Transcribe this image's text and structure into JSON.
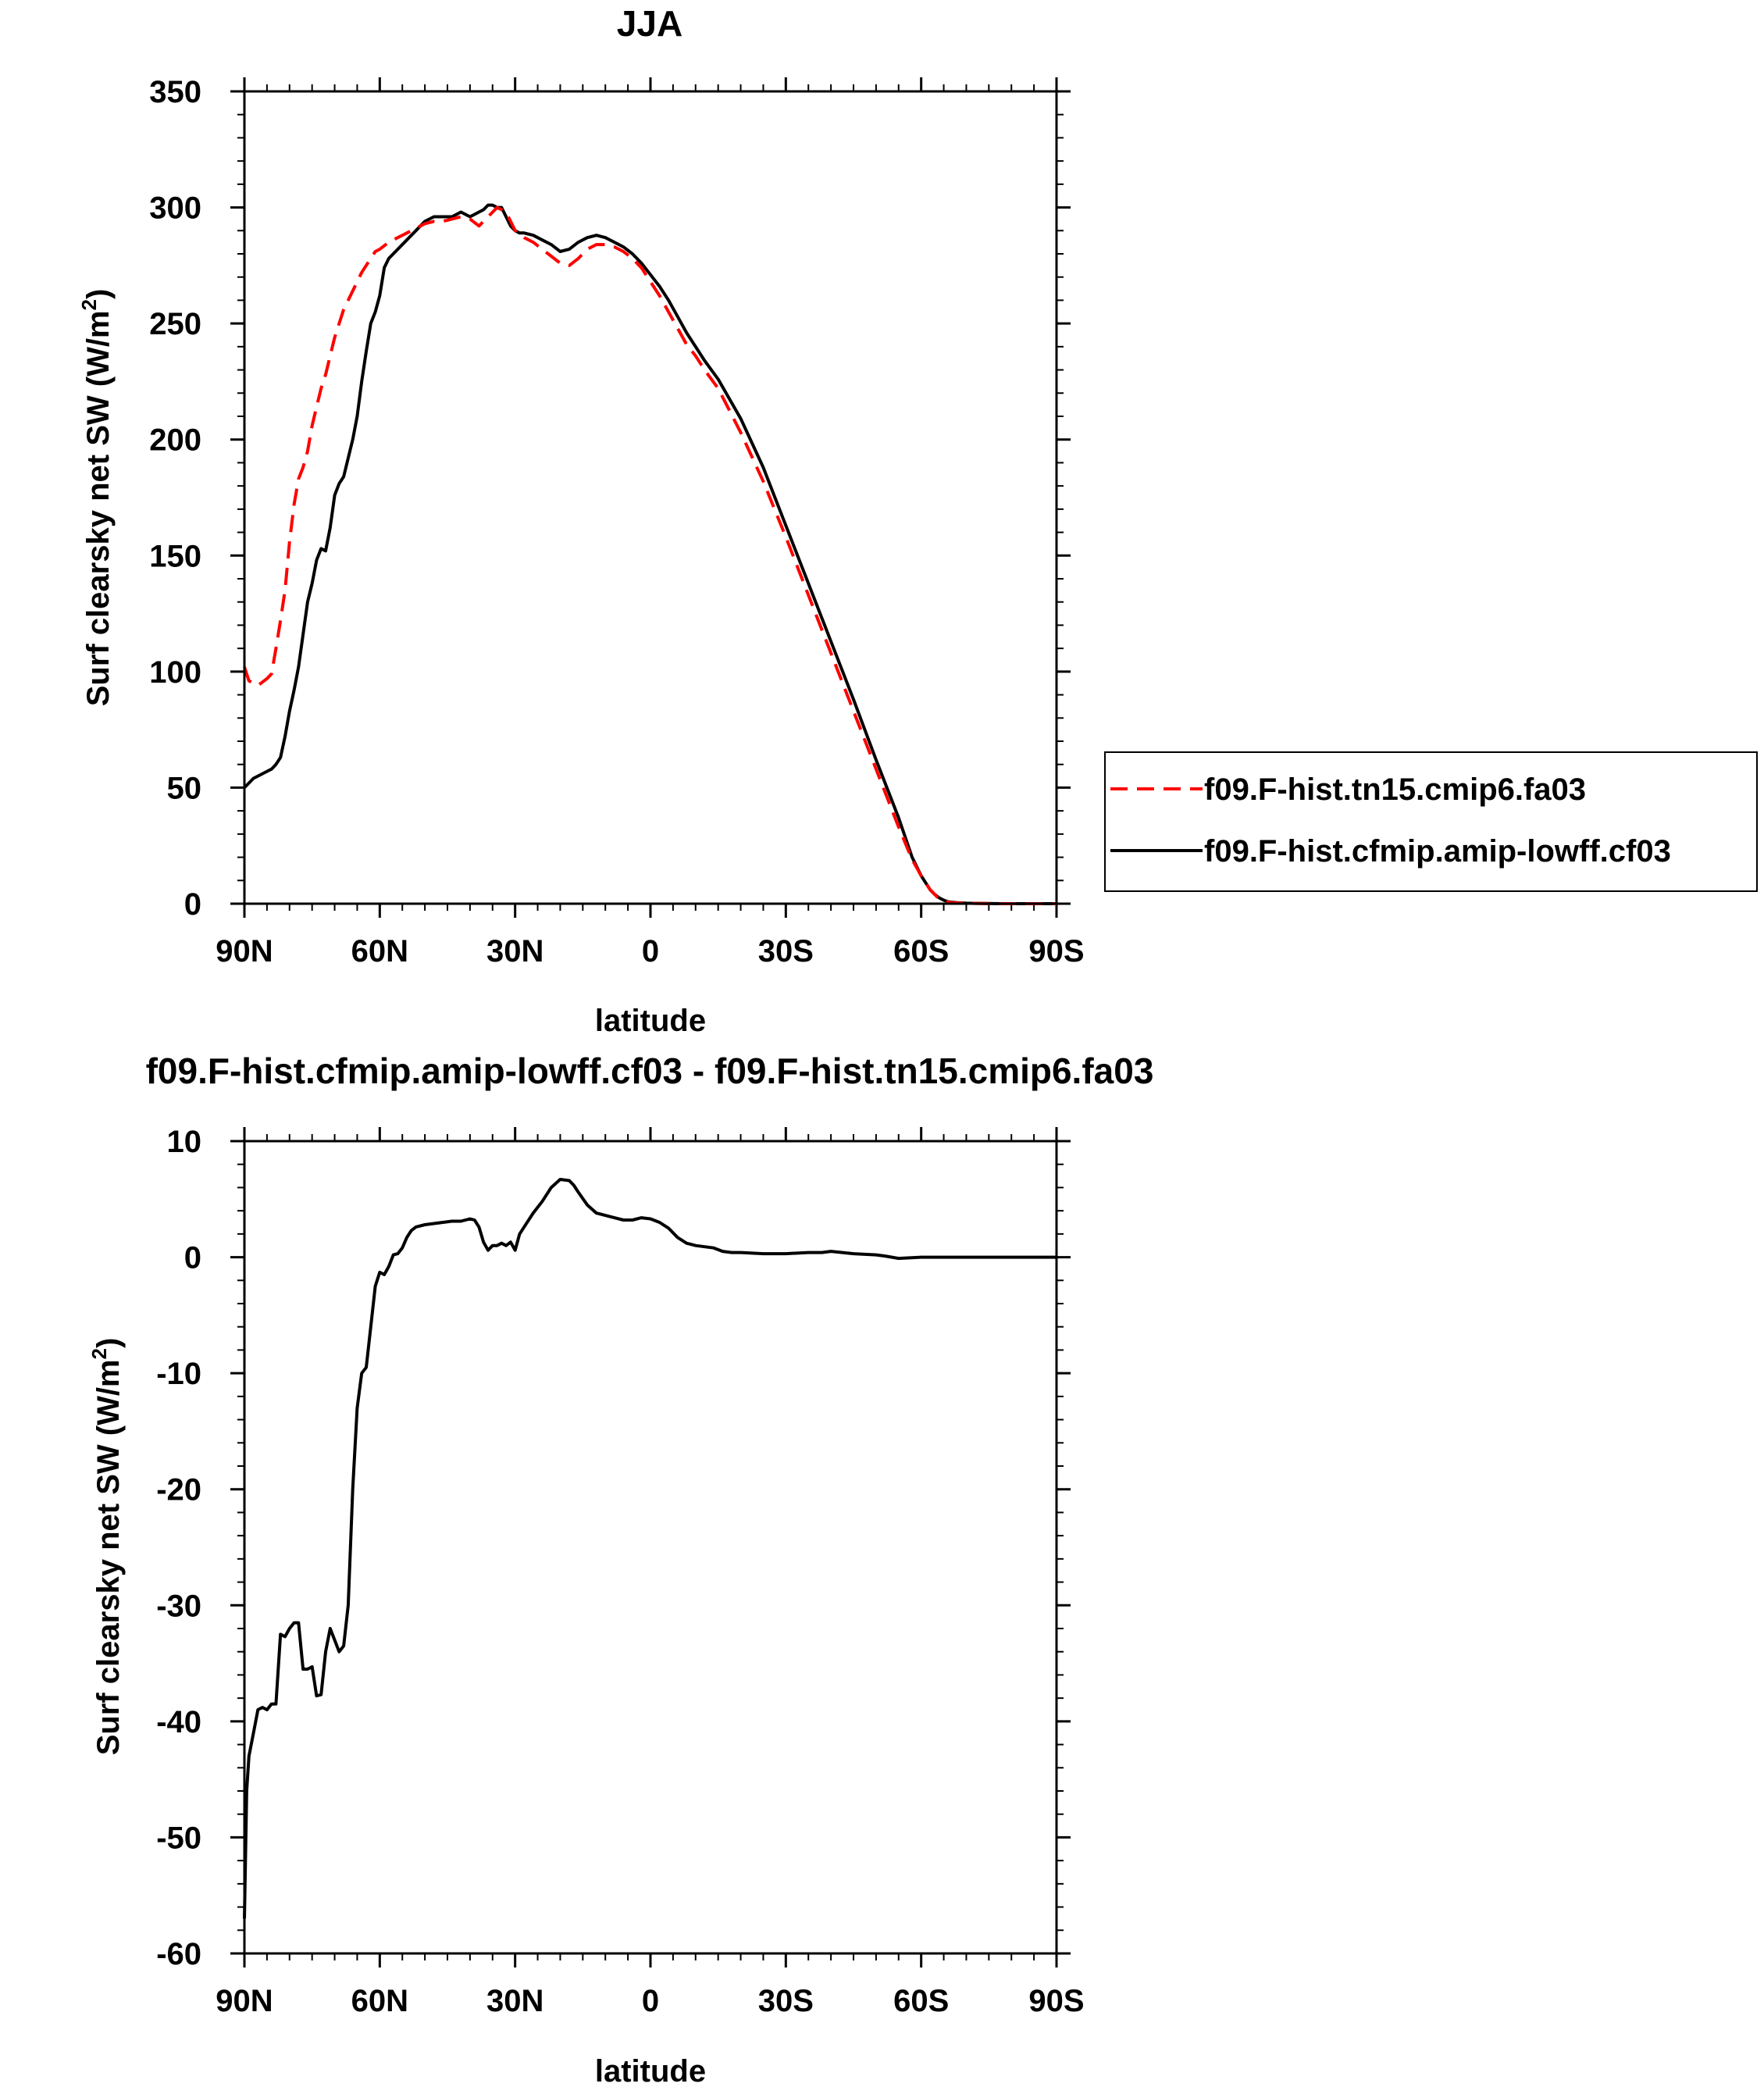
{
  "chart_data": [
    {
      "type": "line",
      "title": "JJA",
      "xlabel": "latitude",
      "ylabel": "Surf clearsky net SW (W/m",
      "ylabel_sup": "2",
      "ylabel_close": ")",
      "xlim": [
        90,
        -90
      ],
      "ylim": [
        0,
        350
      ],
      "x_ticks": [
        {
          "value": 90,
          "label": "90N"
        },
        {
          "value": 60,
          "label": "60N"
        },
        {
          "value": 30,
          "label": "30N"
        },
        {
          "value": 0,
          "label": "0"
        },
        {
          "value": -30,
          "label": "30S"
        },
        {
          "value": -60,
          "label": "60S"
        },
        {
          "value": -90,
          "label": "90S"
        }
      ],
      "y_ticks": [
        0,
        50,
        100,
        150,
        200,
        250,
        300,
        350
      ],
      "legend_position": "right",
      "series": [
        {
          "name": "f09.F-hist.tn15.cmip6.fa03",
          "color": "#ff0000",
          "dash": "dashed",
          "x": [
            90,
            89,
            88,
            87,
            85,
            84,
            83,
            82,
            81,
            80,
            79,
            78,
            77,
            76,
            75,
            74,
            73,
            72,
            71,
            70,
            68,
            66,
            65,
            64,
            62,
            61,
            60,
            58,
            56,
            54,
            52,
            50,
            48,
            46,
            44,
            42,
            40,
            38,
            37,
            36,
            34,
            33,
            32,
            30,
            28,
            26,
            24,
            22,
            20,
            18,
            16,
            14,
            12,
            10,
            8,
            6,
            4,
            2,
            0,
            -2,
            -4,
            -6,
            -8,
            -10,
            -12,
            -15,
            -20,
            -25,
            -30,
            -35,
            -40,
            -45,
            -50,
            -55,
            -58,
            -60,
            -62,
            -63,
            -64,
            -65,
            -66,
            -68,
            -70,
            -75,
            -80,
            -90
          ],
          "y": [
            102,
            96,
            95,
            94,
            97,
            99,
            110,
            122,
            135,
            156,
            172,
            183,
            188,
            195,
            206,
            214,
            222,
            228,
            236,
            244,
            256,
            264,
            268,
            272,
            278,
            281,
            282,
            285,
            287,
            289,
            291,
            293,
            294,
            294,
            295,
            296,
            295,
            292,
            294,
            296,
            300,
            299,
            298,
            290,
            287,
            285,
            282,
            279,
            276,
            275,
            278,
            282,
            284,
            284,
            283,
            281,
            278,
            274,
            268,
            262,
            255,
            248,
            241,
            236,
            230,
            222,
            203,
            182,
            158,
            133,
            108,
            83,
            58,
            33,
            19,
            12,
            6,
            4,
            2,
            1.2,
            0.6,
            0.3,
            0.15,
            0.05,
            0,
            0
          ]
        },
        {
          "name": "f09.F-hist.cfmip.amip-lowff.cf03",
          "color": "#000000",
          "dash": "solid",
          "x": [
            90,
            89,
            88,
            87,
            86,
            85,
            84,
            83,
            82,
            81,
            80,
            79,
            78,
            77,
            76,
            75,
            74,
            73,
            72,
            71,
            70,
            69,
            68,
            67,
            66,
            65,
            64,
            63,
            62,
            61,
            60,
            59,
            58,
            56,
            54,
            52,
            50,
            48,
            46,
            44,
            42,
            40,
            39,
            38,
            37,
            36,
            35,
            34,
            33,
            32,
            31,
            30,
            29,
            28,
            26,
            24,
            22,
            20,
            18,
            16,
            14,
            12,
            10,
            8,
            6,
            4,
            2,
            0,
            -2,
            -4,
            -6,
            -8,
            -10,
            -12,
            -15,
            -20,
            -25,
            -30,
            -35,
            -40,
            -45,
            -50,
            -55,
            -58,
            -60,
            -62,
            -63,
            -64,
            -65,
            -66,
            -68,
            -70,
            -75,
            -80,
            -90
          ],
          "y": [
            50,
            52,
            54,
            55,
            56,
            57,
            58,
            60,
            63,
            72,
            83,
            92,
            102,
            116,
            130,
            138,
            148,
            153,
            152,
            162,
            176,
            181,
            184,
            192,
            200,
            210,
            225,
            238,
            250,
            255,
            262,
            274,
            278,
            282,
            286,
            290,
            294,
            296,
            296,
            296,
            298,
            296,
            297,
            298,
            299,
            301,
            301,
            300,
            300,
            296,
            292,
            290,
            289,
            289,
            288,
            286,
            284,
            281,
            282,
            285,
            287,
            288,
            287,
            285,
            283,
            280,
            276,
            271,
            266,
            260,
            253,
            246,
            240,
            234,
            226,
            209,
            188,
            163,
            138,
            113,
            88,
            62,
            37,
            20,
            12,
            6,
            4,
            2.5,
            1.5,
            0.8,
            0.4,
            0.2,
            0.06,
            0,
            0
          ]
        }
      ]
    },
    {
      "type": "line",
      "title": "f09.F-hist.cfmip.amip-lowff.cf03 - f09.F-hist.tn15.cmip6.fa03",
      "xlabel": "latitude",
      "ylabel": "Surf clearsky net SW (W/m",
      "ylabel_sup": "2",
      "ylabel_close": ")",
      "xlim": [
        90,
        -90
      ],
      "ylim": [
        -60,
        10
      ],
      "x_ticks": [
        {
          "value": 90,
          "label": "90N"
        },
        {
          "value": 60,
          "label": "60N"
        },
        {
          "value": 30,
          "label": "30N"
        },
        {
          "value": 0,
          "label": "0"
        },
        {
          "value": -30,
          "label": "30S"
        },
        {
          "value": -60,
          "label": "60S"
        },
        {
          "value": -90,
          "label": "90S"
        }
      ],
      "y_ticks": [
        10,
        0,
        -10,
        -20,
        -30,
        -40,
        -50,
        -60
      ],
      "series": [
        {
          "color": "#000000",
          "dash": "solid",
          "x": [
            90,
            89.5,
            89,
            88,
            87,
            86,
            85,
            84,
            83,
            82,
            81,
            80,
            79,
            78,
            77,
            76,
            75,
            74,
            73,
            72,
            71,
            70,
            69,
            68,
            67,
            66,
            65,
            64,
            63,
            62,
            61,
            60,
            59,
            58,
            57,
            56,
            55,
            54,
            53,
            52,
            50,
            48,
            46,
            44,
            42,
            40,
            39,
            38,
            37,
            36,
            35,
            34,
            33,
            32,
            31,
            30,
            29,
            28,
            26,
            24,
            22,
            20,
            18,
            17,
            16,
            14,
            12,
            10,
            8,
            6,
            4,
            2,
            0,
            -2,
            -4,
            -6,
            -8,
            -10,
            -12,
            -14,
            -16,
            -18,
            -20,
            -25,
            -30,
            -35,
            -38,
            -40,
            -45,
            -50,
            -52,
            -55,
            -60,
            -65,
            -70,
            -80,
            -90
          ],
          "y": [
            -57,
            -46,
            -43,
            -41,
            -39,
            -38.8,
            -39,
            -38.5,
            -38.5,
            -32.5,
            -32.7,
            -32,
            -31.5,
            -31.5,
            -35.5,
            -35.5,
            -35.3,
            -37.8,
            -37.7,
            -34,
            -32,
            -33,
            -34,
            -33.5,
            -30,
            -20,
            -13,
            -10,
            -9.5,
            -6,
            -2.5,
            -1.3,
            -1.5,
            -0.8,
            0.2,
            0.3,
            0.8,
            1.7,
            2.3,
            2.6,
            2.8,
            2.9,
            3.0,
            3.1,
            3.1,
            3.3,
            3.2,
            2.6,
            1.3,
            0.6,
            1.0,
            1.0,
            1.2,
            1.0,
            1.3,
            0.6,
            2.0,
            2.6,
            3.8,
            4.8,
            6.0,
            6.7,
            6.6,
            6.2,
            5.6,
            4.5,
            3.8,
            3.6,
            3.4,
            3.2,
            3.2,
            3.4,
            3.3,
            3.0,
            2.5,
            1.7,
            1.2,
            1.0,
            0.9,
            0.8,
            0.5,
            0.4,
            0.4,
            0.3,
            0.3,
            0.4,
            0.4,
            0.5,
            0.3,
            0.2,
            0.1,
            -0.1,
            0.0,
            0.0,
            0.0,
            0.0,
            0.0
          ]
        }
      ]
    }
  ]
}
